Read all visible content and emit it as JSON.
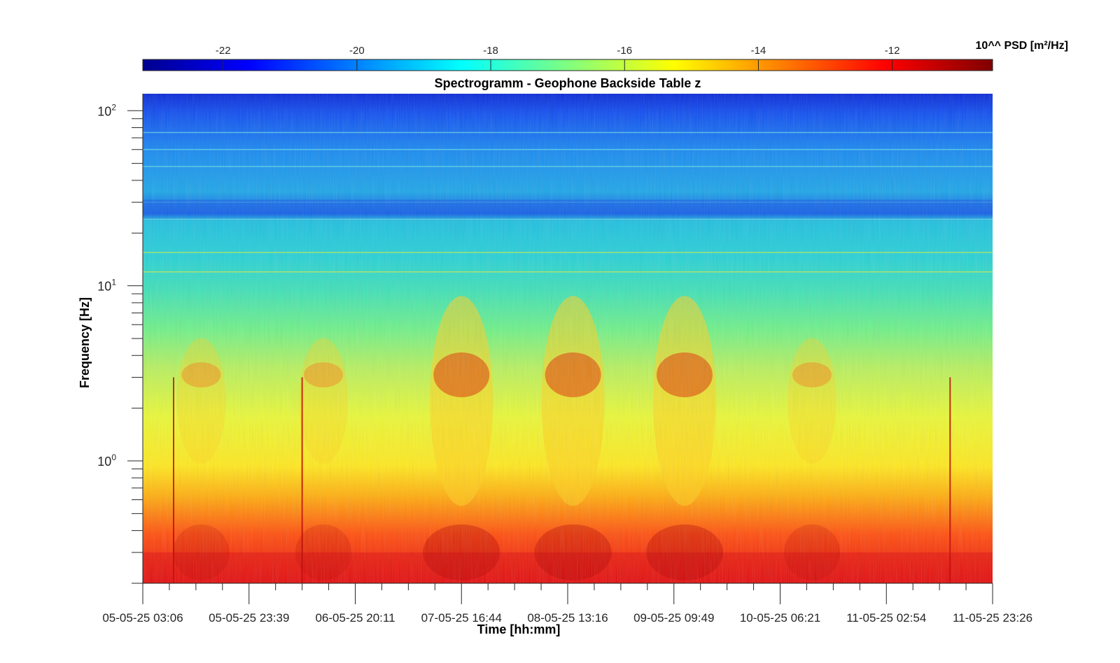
{
  "chart_data": {
    "type": "heatmap",
    "title": "Spectrogramm - Geophone Backside Table z",
    "xlabel": "Time [hh:mm]",
    "ylabel": "Frequency [Hz]",
    "y_scale": "log",
    "ylim": [
      0.2,
      125
    ],
    "y_ticks": [
      {
        "value": 1,
        "base": "10",
        "exp": "0"
      },
      {
        "value": 10,
        "base": "10",
        "exp": "1"
      },
      {
        "value": 100,
        "base": "10",
        "exp": "2"
      }
    ],
    "x_ticks": [
      "05-05-25 03:06",
      "05-05-25 23:39",
      "06-05-25 20:11",
      "07-05-25 16:44",
      "08-05-25 13:16",
      "09-05-25 09:49",
      "10-05-25 06:21",
      "11-05-25 02:54",
      "11-05-25 23:26"
    ],
    "colorbar": {
      "label": "10^^ PSD [m²/Hz]",
      "ticks": [
        "-22",
        "-20",
        "-18",
        "-16",
        "-14",
        "-12"
      ],
      "tick_values": [
        -22,
        -20,
        -18,
        -16,
        -14,
        -12
      ],
      "range": [
        -23.2,
        -10.5
      ],
      "colormap": "jet"
    },
    "active_bands": [
      {
        "center_x_tick_index": 0.55,
        "level": "moderate"
      },
      {
        "center_x_tick_index": 1.7,
        "level": "moderate"
      },
      {
        "center_x_tick_index": 3.0,
        "level": "high"
      },
      {
        "center_x_tick_index": 4.05,
        "level": "high"
      },
      {
        "center_x_tick_index": 5.1,
        "level": "high"
      },
      {
        "center_x_tick_index": 6.3,
        "level": "moderate"
      }
    ],
    "grid": false
  }
}
